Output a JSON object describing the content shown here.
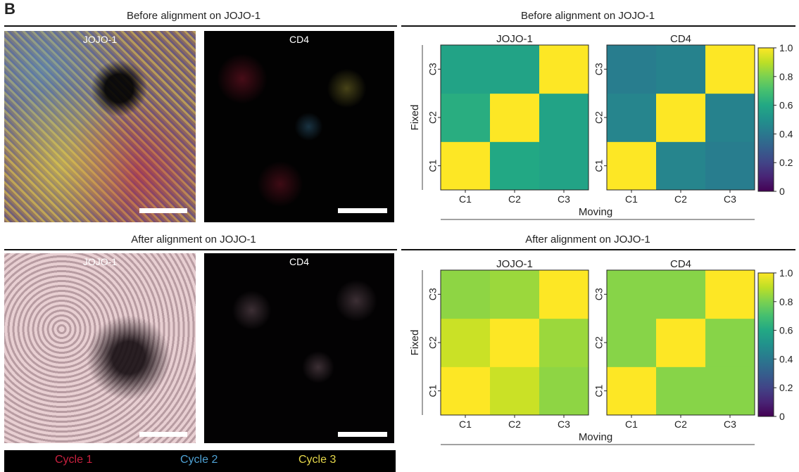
{
  "panel_label": "B",
  "left": {
    "before_title": "Before alignment on JOJO-1",
    "after_title": "After alignment on JOJO-1",
    "image_labels": [
      "JOJO-1",
      "CD4"
    ],
    "legend": [
      {
        "label": "Cycle 1",
        "color": "#c8203f"
      },
      {
        "label": "Cycle 2",
        "color": "#4fa3d6"
      },
      {
        "label": "Cycle 3",
        "color": "#e6d84a"
      }
    ]
  },
  "right": {
    "before_title": "Before alignment on JOJO-1",
    "after_title": "After alignment on JOJO-1"
  },
  "chart_data": [
    {
      "type": "heatmap",
      "title": "JOJO-1",
      "section": "Before alignment on JOJO-1",
      "x_categories": [
        "C1",
        "C2",
        "C3"
      ],
      "y_categories": [
        "C1",
        "C2",
        "C3"
      ],
      "xlabel": "Moving",
      "ylabel": "Fixed",
      "values": [
        [
          1.0,
          0.6,
          0.58
        ],
        [
          0.62,
          1.0,
          0.58
        ],
        [
          0.58,
          0.58,
          1.0
        ]
      ],
      "vmin": 0,
      "vmax": 1,
      "colormap": "viridis"
    },
    {
      "type": "heatmap",
      "title": "CD4",
      "section": "Before alignment on JOJO-1",
      "x_categories": [
        "C1",
        "C2",
        "C3"
      ],
      "y_categories": [
        "C1",
        "C2",
        "C3"
      ],
      "xlabel": "Moving",
      "ylabel": "Fixed",
      "values": [
        [
          1.0,
          0.45,
          0.42
        ],
        [
          0.45,
          1.0,
          0.44
        ],
        [
          0.42,
          0.44,
          1.0
        ]
      ],
      "vmin": 0,
      "vmax": 1,
      "colormap": "viridis"
    },
    {
      "type": "heatmap",
      "title": "JOJO-1",
      "section": "After alignment on JOJO-1",
      "x_categories": [
        "C1",
        "C2",
        "C3"
      ],
      "y_categories": [
        "C1",
        "C2",
        "C3"
      ],
      "xlabel": "Moving",
      "ylabel": "Fixed",
      "values": [
        [
          1.0,
          0.92,
          0.83
        ],
        [
          0.92,
          1.0,
          0.85
        ],
        [
          0.83,
          0.85,
          1.0
        ]
      ],
      "vmin": 0,
      "vmax": 1,
      "colormap": "viridis"
    },
    {
      "type": "heatmap",
      "title": "CD4",
      "section": "After alignment on JOJO-1",
      "x_categories": [
        "C1",
        "C2",
        "C3"
      ],
      "y_categories": [
        "C1",
        "C2",
        "C3"
      ],
      "xlabel": "Moving",
      "ylabel": "Fixed",
      "values": [
        [
          1.0,
          0.82,
          0.82
        ],
        [
          0.82,
          1.0,
          0.82
        ],
        [
          0.82,
          0.82,
          1.0
        ]
      ],
      "vmin": 0,
      "vmax": 1,
      "colormap": "viridis"
    }
  ],
  "colorbar": {
    "ticks": [
      "1.0",
      "0.8",
      "0.6",
      "0.4",
      "0.2",
      "0"
    ],
    "tick_values": [
      1.0,
      0.8,
      0.6,
      0.4,
      0.2,
      0.0
    ]
  }
}
